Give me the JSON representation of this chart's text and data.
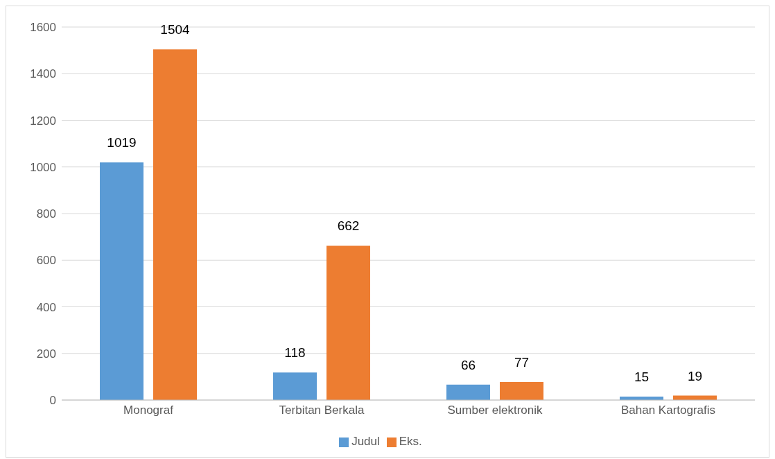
{
  "chart_data": {
    "type": "bar",
    "categories": [
      "Monograf",
      "Terbitan Berkala",
      "Sumber elektronik",
      "Bahan Kartografis"
    ],
    "series": [
      {
        "name": "Judul",
        "color": "#5b9bd5",
        "values": [
          1019,
          118,
          66,
          15
        ]
      },
      {
        "name": "Eks.",
        "color": "#ed7d31",
        "values": [
          1504,
          662,
          77,
          19
        ]
      }
    ],
    "ylim": [
      0,
      1600
    ],
    "yticks": [
      0,
      200,
      400,
      600,
      800,
      1000,
      1200,
      1400,
      1600
    ],
    "grid": "y",
    "legend": "bottom",
    "data_labels": true
  }
}
